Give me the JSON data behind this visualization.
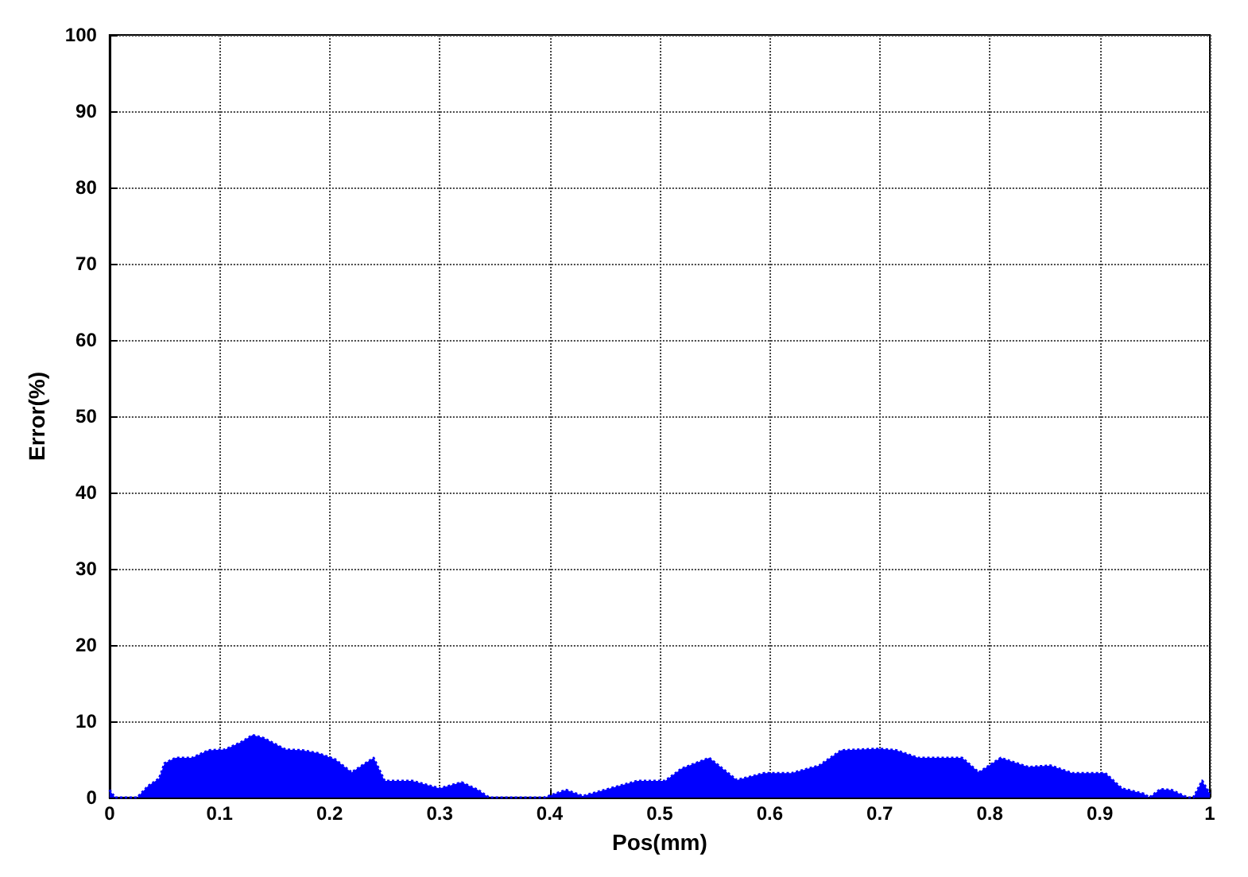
{
  "chart_data": {
    "type": "area",
    "xlabel": "Pos(mm)",
    "ylabel": "Error(%)",
    "xlim": [
      0,
      1
    ],
    "ylim": [
      0,
      100
    ],
    "xticks": [
      0,
      0.1,
      0.2,
      0.3,
      0.4,
      0.5,
      0.6,
      0.7,
      0.8,
      0.9,
      1
    ],
    "yticks": [
      0,
      10,
      20,
      30,
      40,
      50,
      60,
      70,
      80,
      90,
      100
    ],
    "grid": true,
    "line_style": "dotted",
    "series": [
      {
        "color": "#0000ff",
        "x": [
          0,
          0.005,
          0.025,
          0.035,
          0.045,
          0.05,
          0.06,
          0.075,
          0.09,
          0.105,
          0.12,
          0.13,
          0.14,
          0.16,
          0.175,
          0.19,
          0.205,
          0.22,
          0.24,
          0.25,
          0.275,
          0.3,
          0.32,
          0.335,
          0.345,
          0.395,
          0.415,
          0.43,
          0.45,
          0.48,
          0.505,
          0.52,
          0.545,
          0.57,
          0.595,
          0.62,
          0.645,
          0.665,
          0.7,
          0.715,
          0.735,
          0.775,
          0.79,
          0.81,
          0.835,
          0.855,
          0.875,
          0.905,
          0.92,
          0.94,
          0.945,
          0.955,
          0.965,
          0.98,
          0.985,
          0.993,
          1
        ],
        "values": [
          1,
          0,
          0,
          1.5,
          2.5,
          4.5,
          5.2,
          5.2,
          6.2,
          6.3,
          7.3,
          8.2,
          7.8,
          6.3,
          6.2,
          5.8,
          5,
          3.3,
          5.2,
          2.2,
          2.2,
          1.2,
          2,
          1,
          0,
          0,
          1,
          0.2,
          1,
          2.2,
          2.2,
          3.8,
          5.2,
          2.3,
          3.2,
          3.2,
          4.2,
          6.2,
          6.4,
          6.2,
          5.2,
          5.2,
          3.3,
          5.2,
          4,
          4.2,
          3.2,
          3.2,
          1.2,
          0.5,
          0,
          1.1,
          1,
          0,
          0,
          2.2,
          0.5
        ]
      }
    ]
  }
}
